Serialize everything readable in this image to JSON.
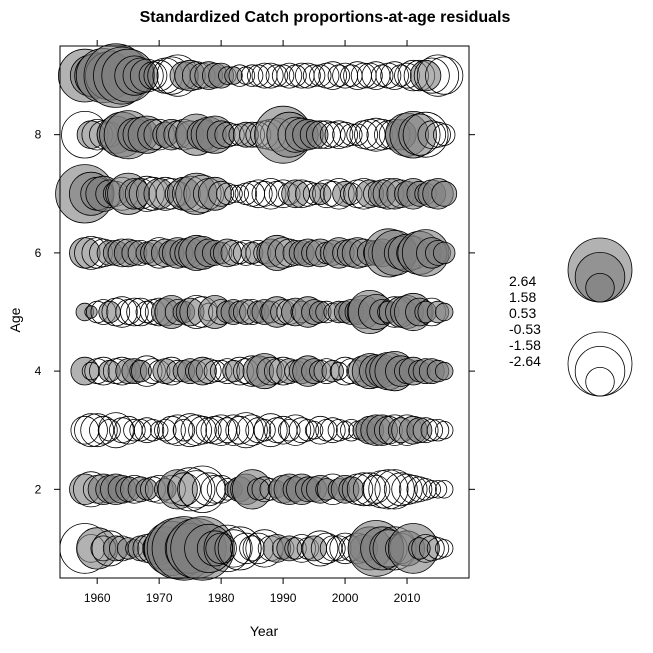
{
  "chart_data": {
    "type": "scatter",
    "title": "Standardized Catch proportions-at-age residuals",
    "xlabel": "Year",
    "ylabel": "Age",
    "xlim": [
      1954,
      2020
    ],
    "ylim": [
      0.5,
      9.5
    ],
    "x_ticks": [
      1960,
      1970,
      1980,
      1990,
      2000,
      2010
    ],
    "x_tick_labels": [
      "1960",
      "1970",
      "1980",
      "1990",
      "2000",
      "2010"
    ],
    "y_ticks": [
      2,
      4,
      6,
      8
    ],
    "y_tick_labels": [
      "2",
      "4",
      "6",
      "8"
    ],
    "max_abs_residual": 2.64,
    "colors": {
      "positive_fill": "#7f7f7f",
      "positive_opacity": 0.6,
      "negative_fill": "#ffffff",
      "stroke": "#000000"
    },
    "legend": {
      "values": [
        2.64,
        1.58,
        0.53,
        -0.53,
        -1.58,
        -2.64
      ],
      "labels": [
        "2.64",
        "1.58",
        "0.53",
        "-0.53",
        "-1.58",
        "-2.64"
      ],
      "placement": "right"
    },
    "years_start": 1958,
    "years_end": 2016,
    "series": [
      {
        "age": 1,
        "name": "Age 1",
        "residuals": [
          -1.6,
          -0.5,
          1.1,
          -0.4,
          -0.8,
          0.4,
          -0.4,
          0.3,
          -0.2,
          0.4,
          -0.5,
          -0.6,
          0.7,
          1.2,
          1.9,
          2.4,
          2.6,
          1.6,
          2.3,
          2.6,
          1.5,
          0.8,
          -0.6,
          -1.4,
          -0.9,
          -1.2,
          -0.6,
          -0.4,
          -0.6,
          -0.9,
          -0.4,
          0.5,
          -0.3,
          0.4,
          -0.3,
          -0.5,
          -0.3,
          0.4,
          -0.8,
          -0.6,
          -0.4,
          -0.4,
          -0.6,
          -0.4,
          -0.6,
          0.5,
          1.2,
          2.0,
          1.2,
          -0.9,
          -1.2,
          -0.6,
          0.8,
          1.6,
          0.3,
          -0.5,
          -0.4,
          -0.3,
          -0.2
        ]
      },
      {
        "age": 2,
        "name": "Age 2",
        "residuals": [
          0.6,
          -0.8,
          -0.5,
          0.6,
          0.5,
          0.6,
          0.5,
          0.4,
          -0.5,
          0.4,
          0.3,
          -0.4,
          -0.5,
          0.3,
          -0.5,
          1.0,
          -0.7,
          -1.2,
          -0.9,
          -1.4,
          -0.7,
          -0.5,
          -0.5,
          -0.3,
          0.2,
          0.4,
          0.6,
          1.0,
          0.3,
          -0.4,
          -0.3,
          0.2,
          0.5,
          0.6,
          0.4,
          0.6,
          0.4,
          0.4,
          0.5,
          0.3,
          -0.6,
          0.3,
          0.5,
          0.4,
          -0.6,
          -0.7,
          -0.7,
          -0.5,
          -0.9,
          -1.0,
          -1.0,
          -0.7,
          -0.6,
          -0.5,
          -0.4,
          -0.3,
          -0.2,
          -0.2,
          -0.2
        ]
      },
      {
        "age": 3,
        "name": "Age 3",
        "residuals": [
          -0.5,
          -0.7,
          -0.7,
          -0.5,
          -0.3,
          -0.8,
          -0.4,
          -0.5,
          -0.3,
          -0.3,
          -0.4,
          -0.3,
          -0.2,
          -0.3,
          -0.5,
          -0.6,
          -0.3,
          -0.7,
          -0.6,
          -0.5,
          -0.4,
          -0.5,
          -0.6,
          -0.4,
          -0.6,
          -0.5,
          -0.8,
          -0.6,
          -0.4,
          -0.3,
          -0.7,
          -0.4,
          -0.5,
          -0.3,
          -0.6,
          -0.4,
          -0.3,
          -0.2,
          -0.5,
          -0.3,
          -0.4,
          -0.3,
          -0.2,
          -0.3,
          -0.2,
          0.3,
          0.5,
          0.6,
          0.6,
          -0.5,
          -0.6,
          0.4,
          -0.6,
          0.5,
          0.4,
          -0.4,
          -0.3,
          -0.3,
          -0.2
        ]
      },
      {
        "age": 4,
        "name": "Age 4",
        "residuals": [
          0.5,
          -0.2,
          -0.4,
          -0.5,
          0.3,
          -0.4,
          -0.5,
          0.4,
          0.4,
          0.3,
          -0.6,
          -0.4,
          -0.3,
          0.4,
          -0.5,
          -0.3,
          0.3,
          0.4,
          -0.3,
          0.5,
          -0.4,
          -0.3,
          -0.3,
          -0.4,
          0.3,
          -0.5,
          -0.4,
          -0.6,
          0.6,
          0.8,
          -0.5,
          -0.4,
          -0.5,
          0.4,
          -0.3,
          0.4,
          0.6,
          0.4,
          -0.3,
          -0.4,
          0.3,
          -0.2,
          -0.5,
          -0.4,
          -0.3,
          0.6,
          0.8,
          0.7,
          0.7,
          0.9,
          1.0,
          0.6,
          0.4,
          0.5,
          0.3,
          0.4,
          0.4,
          0.3,
          0.2
        ]
      },
      {
        "age": 5,
        "name": "Age 5",
        "residuals": [
          0.2,
          0.1,
          -0.3,
          -0.4,
          0.3,
          -0.5,
          -0.6,
          -0.4,
          -0.5,
          -0.5,
          -0.3,
          -0.4,
          -0.5,
          0.5,
          0.7,
          -0.4,
          0.3,
          0.5,
          -0.7,
          -0.6,
          -0.2,
          0.7,
          -0.4,
          0.3,
          0.4,
          -0.3,
          0.4,
          -0.4,
          0.3,
          0.4,
          -0.3,
          0.6,
          -0.4,
          -0.4,
          0.5,
          -0.3,
          0.6,
          0.4,
          0.3,
          -0.3,
          -0.2,
          0.3,
          0.3,
          0.4,
          0.4,
          0.7,
          1.2,
          0.8,
          0.4,
          0.3,
          -0.6,
          0.6,
          0.7,
          0.9,
          0.5,
          0.3,
          -0.5,
          0.3,
          0.2
        ]
      },
      {
        "age": 6,
        "name": "Age 6",
        "residuals": [
          0.6,
          -0.7,
          -0.6,
          -0.5,
          0.4,
          0.4,
          -0.5,
          0.5,
          0.4,
          -0.4,
          0.3,
          0.4,
          -0.6,
          0.5,
          0.4,
          0.6,
          -0.5,
          0.6,
          0.8,
          0.7,
          0.5,
          0.4,
          -0.3,
          0.5,
          -0.4,
          -0.3,
          -0.4,
          0.3,
          -0.4,
          -0.3,
          0.5,
          0.8,
          -0.6,
          -0.5,
          0.4,
          0.4,
          0.5,
          -0.4,
          0.5,
          -0.3,
          0.4,
          0.6,
          -0.4,
          0.5,
          0.6,
          -0.5,
          0.4,
          0.4,
          0.5,
          1.5,
          1.3,
          0.7,
          0.9,
          -0.7,
          1.2,
          1.4,
          0.6,
          0.4,
          0.3
        ]
      },
      {
        "age": 7,
        "name": "Age 7",
        "residuals": [
          2.2,
          1.2,
          0.7,
          0.8,
          -0.5,
          -0.4,
          -0.7,
          1.1,
          0.6,
          -0.6,
          -0.8,
          -0.7,
          0.6,
          -0.7,
          -0.6,
          -0.4,
          0.7,
          -0.8,
          1.1,
          -0.9,
          -0.6,
          0.7,
          -0.4,
          -0.3,
          -0.2,
          -0.2,
          -0.3,
          -0.4,
          -0.5,
          -0.4,
          -0.6,
          -0.4,
          -0.5,
          -0.3,
          0.5,
          -0.5,
          -0.4,
          -0.3,
          0.3,
          -0.5,
          -0.4,
          -0.6,
          0.4,
          -0.3,
          -0.5,
          -0.6,
          0.5,
          -0.4,
          0.5,
          -0.6,
          0.6,
          -0.5,
          0.4,
          0.6,
          0.4,
          -0.3,
          0.5,
          0.6,
          0.4
        ]
      },
      {
        "age": 8,
        "name": "Age 8",
        "residuals": [
          -1.4,
          0.5,
          -0.6,
          -0.5,
          -0.4,
          0.9,
          1.3,
          1.5,
          0.7,
          0.8,
          0.9,
          -0.6,
          -0.6,
          0.4,
          0.6,
          -0.5,
          -0.6,
          0.5,
          1.1,
          0.6,
          0.8,
          0.9,
          0.5,
          -0.4,
          -0.3,
          -0.3,
          0.4,
          -0.4,
          -0.4,
          -0.5,
          -0.6,
          -0.7,
          2.1,
          1.3,
          -0.8,
          0.7,
          0.6,
          0.5,
          -0.5,
          -0.5,
          -0.4,
          -0.5,
          -0.4,
          -0.3,
          -0.3,
          -0.5,
          -0.6,
          -0.7,
          -0.6,
          -0.5,
          -0.6,
          0.6,
          1.2,
          1.4,
          -1.1,
          -1.3,
          -0.5,
          -0.4,
          -0.3
        ]
      },
      {
        "age": 9,
        "name": "Age 9",
        "residuals": [
          1.8,
          1.1,
          1.3,
          1.9,
          1.5,
          2.6,
          2.1,
          1.8,
          1.0,
          0.8,
          -0.7,
          -0.5,
          -0.6,
          -0.8,
          -0.9,
          -1.1,
          0.5,
          0.6,
          -0.5,
          -0.4,
          0.5,
          0.4,
          0.4,
          -0.2,
          0.2,
          -0.3,
          -0.2,
          -0.3,
          -0.3,
          -0.4,
          -0.4,
          -0.3,
          -0.3,
          -0.4,
          -0.3,
          -0.4,
          -0.4,
          -0.3,
          -0.3,
          -0.4,
          -0.5,
          -0.3,
          -0.4,
          -0.3,
          -0.5,
          -0.4,
          -0.4,
          -0.5,
          -0.3,
          -0.4,
          -0.5,
          -0.3,
          -0.4,
          -0.6,
          -0.6,
          0.6,
          -0.8,
          -1.1,
          -0.9
        ]
      }
    ]
  }
}
